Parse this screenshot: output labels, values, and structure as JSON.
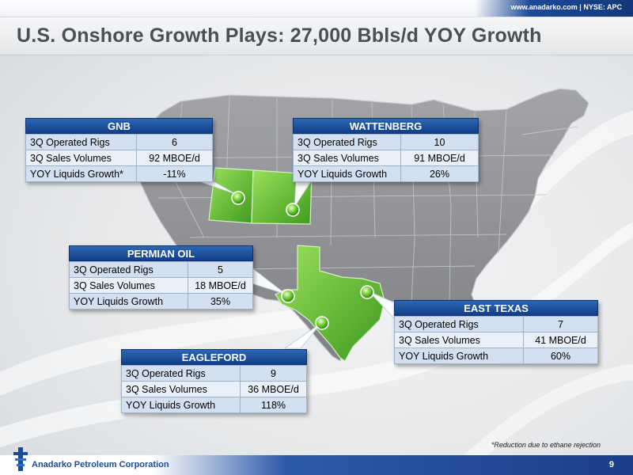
{
  "header": {
    "site_info": "www.anadarko.com | NYSE: APC",
    "title": "U.S. Onshore Growth Plays: 27,000 Bbls/d YOY Growth"
  },
  "colors": {
    "header_blue": "#1c4a97",
    "table_header": "#1a4d9c",
    "map_land": "#8e9094",
    "highlight_green": "#6cc23a"
  },
  "plays": [
    {
      "name": "GNB",
      "rows": [
        {
          "label": "3Q Operated Rigs",
          "value": "6"
        },
        {
          "label": "3Q Sales Volumes",
          "value": "92 MBOE/d"
        },
        {
          "label": "YOY Liquids Growth*",
          "value": "-11%"
        }
      ]
    },
    {
      "name": "WATTENBERG",
      "rows": [
        {
          "label": "3Q Operated Rigs",
          "value": "10"
        },
        {
          "label": "3Q Sales Volumes",
          "value": "91 MBOE/d"
        },
        {
          "label": "YOY Liquids Growth",
          "value": "26%"
        }
      ]
    },
    {
      "name": "PERMIAN OIL",
      "rows": [
        {
          "label": "3Q Operated Rigs",
          "value": "5"
        },
        {
          "label": "3Q Sales Volumes",
          "value": "18 MBOE/d"
        },
        {
          "label": "YOY Liquids Growth",
          "value": "35%"
        }
      ]
    },
    {
      "name": "EAST TEXAS",
      "rows": [
        {
          "label": "3Q Operated Rigs",
          "value": "7"
        },
        {
          "label": "3Q Sales Volumes",
          "value": "41 MBOE/d"
        },
        {
          "label": "YOY Liquids Growth",
          "value": "60%"
        }
      ]
    },
    {
      "name": "EAGLEFORD",
      "rows": [
        {
          "label": "3Q Operated Rigs",
          "value": "9"
        },
        {
          "label": "3Q Sales Volumes",
          "value": "36 MBOE/d"
        },
        {
          "label": "YOY Liquids Growth",
          "value": "118%"
        }
      ]
    }
  ],
  "footnote": "*Reduction due to ethane rejection",
  "footer": {
    "company": "Anadarko Petroleum Corporation",
    "page_number": "9"
  }
}
